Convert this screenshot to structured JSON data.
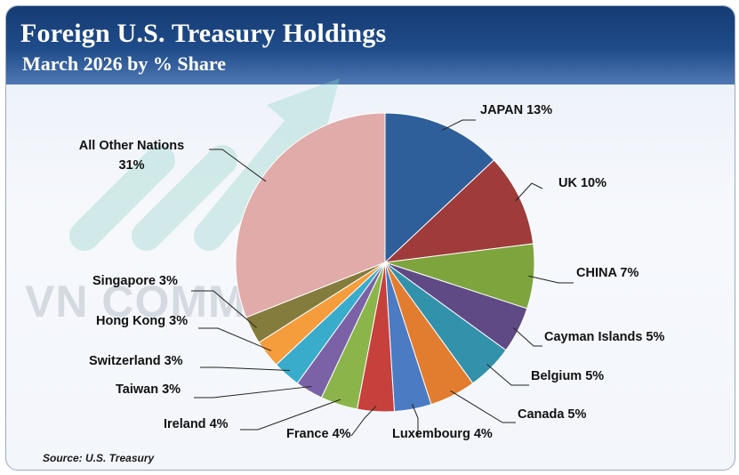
{
  "header": {
    "title": "Foreign U.S. Treasury Holdings",
    "subtitle": "March 2026 by % Share"
  },
  "watermark": {
    "text": "VN COMMODITIES",
    "icon": "rising-arrow-icon"
  },
  "source": "Source: U.S. Treasury",
  "colors": {
    "header": "#1d4681",
    "background": "#eef2f8"
  },
  "chart_data": {
    "type": "pie",
    "start": "top, clockwise",
    "slices": [
      {
        "label": "JAPAN",
        "value": 13,
        "display": "JAPAN 13%",
        "color": "#2e5f9b"
      },
      {
        "label": "UK",
        "value": 10,
        "display": "UK 10%",
        "color": "#9f3b3a"
      },
      {
        "label": "CHINA",
        "value": 7,
        "display": "CHINA 7%",
        "color": "#7ea43e"
      },
      {
        "label": "Cayman Islands",
        "value": 5,
        "display": "Cayman Islands 5%",
        "color": "#5f4a86"
      },
      {
        "label": "Belgium",
        "value": 5,
        "display": "Belgium 5%",
        "color": "#3392ab"
      },
      {
        "label": "Canada",
        "value": 5,
        "display": "Canada 5%",
        "color": "#e27d2f"
      },
      {
        "label": "Luxembourg",
        "value": 4,
        "display": "Luxembourg 4%",
        "color": "#4a7bc3"
      },
      {
        "label": "France",
        "value": 4,
        "display": "France 4%",
        "color": "#c6403c"
      },
      {
        "label": "Ireland",
        "value": 4,
        "display": "Ireland 4%",
        "color": "#8bb54a"
      },
      {
        "label": "Taiwan",
        "value": 3,
        "display": "Taiwan 3%",
        "color": "#7b62a6"
      },
      {
        "label": "Switzerland",
        "value": 3,
        "display": "Switzerland 3%",
        "color": "#3aaccb"
      },
      {
        "label": "Hong Kong",
        "value": 3,
        "display": "Hong Kong 3%",
        "color": "#f59c3d"
      },
      {
        "label": "Singapore",
        "value": 3,
        "display": "Singapore 3%",
        "color": "#847c3c"
      },
      {
        "label": "All Other Nations",
        "value": 31,
        "display": "All Other Nations\n31%",
        "color": "#e1abaa"
      }
    ]
  }
}
